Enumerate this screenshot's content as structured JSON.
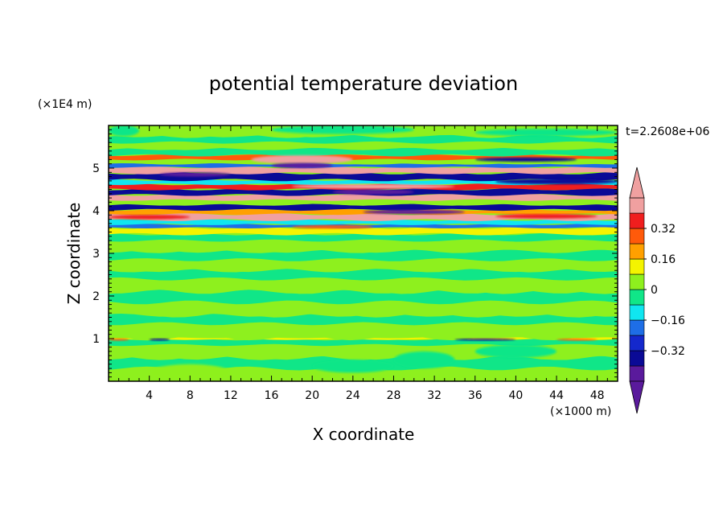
{
  "chart_data": {
    "type": "heatmap",
    "title": "potential temperature deviation",
    "xlabel": "X coordinate",
    "ylabel": "Z coordinate",
    "x_unit": "(×1000 m)",
    "y_unit": "(×1E4 m)",
    "time_label": "t=2.2608e+06",
    "xlim": [
      0,
      50
    ],
    "ylim": [
      0,
      6
    ],
    "x_ticks": [
      4,
      8,
      12,
      16,
      20,
      24,
      28,
      32,
      36,
      40,
      44,
      48
    ],
    "x_tick_labels": [
      "4",
      "8",
      "12",
      "16",
      "20",
      "24",
      "28",
      "32",
      "36",
      "40",
      "44",
      "48"
    ],
    "y_ticks": [
      1,
      2,
      3,
      4,
      5
    ],
    "y_tick_labels": [
      "1",
      "2",
      "3",
      "4",
      "5"
    ],
    "colorbar": {
      "labels": [
        {
          "text": "0.32",
          "value": 0.32
        },
        {
          "text": "0.16",
          "value": 0.16
        },
        {
          "text": "0",
          "value": 0
        },
        {
          "text": "−0.16",
          "value": -0.16
        },
        {
          "text": "−0.32",
          "value": -0.32
        }
      ],
      "levels": [
        {
          "from": -0.48,
          "to": -0.4,
          "color": "#5a1a9c"
        },
        {
          "from": -0.4,
          "to": -0.32,
          "color": "#0a0a96"
        },
        {
          "from": -0.32,
          "to": -0.24,
          "color": "#1428cc"
        },
        {
          "from": -0.24,
          "to": -0.16,
          "color": "#1e6ee6"
        },
        {
          "from": -0.16,
          "to": -0.08,
          "color": "#10e6f0"
        },
        {
          "from": -0.08,
          "to": 0,
          "color": "#10e688"
        },
        {
          "from": 0,
          "to": 0.08,
          "color": "#8ef01e"
        },
        {
          "from": 0.08,
          "to": 0.16,
          "color": "#f4f400"
        },
        {
          "from": 0.16,
          "to": 0.24,
          "color": "#ffa000"
        },
        {
          "from": 0.24,
          "to": 0.32,
          "color": "#ff5a0a"
        },
        {
          "from": 0.32,
          "to": 0.4,
          "color": "#f01e1e"
        },
        {
          "from": 0.4,
          "to": 0.48,
          "color": "#f0a0a0"
        }
      ],
      "extend_low_color": "#5a1a9c",
      "extend_high_color": "#f0a0a0"
    },
    "bands": [
      {
        "z": [
          0.0,
          0.3
        ],
        "v": 0.04
      },
      {
        "z": [
          0.3,
          0.55
        ],
        "v": -0.04
      },
      {
        "z": [
          0.55,
          0.85
        ],
        "v": 0.04
      },
      {
        "z": [
          0.85,
          0.98
        ],
        "v": -0.05
      },
      {
        "z": [
          0.98,
          1.02
        ],
        "v": 0.12
      },
      {
        "z": [
          1.02,
          1.35
        ],
        "v": 0.04
      },
      {
        "z": [
          1.35,
          1.55
        ],
        "v": -0.04
      },
      {
        "z": [
          1.55,
          1.85
        ],
        "v": 0.04
      },
      {
        "z": [
          1.85,
          2.1
        ],
        "v": -0.04
      },
      {
        "z": [
          2.1,
          2.4
        ],
        "v": 0.04
      },
      {
        "z": [
          2.4,
          2.6
        ],
        "v": -0.04
      },
      {
        "z": [
          2.6,
          2.85
        ],
        "v": 0.04
      },
      {
        "z": [
          2.85,
          3.05
        ],
        "v": -0.04
      },
      {
        "z": [
          3.05,
          3.3
        ],
        "v": 0.04
      },
      {
        "z": [
          3.3,
          3.45
        ],
        "v": -0.04
      },
      {
        "z": [
          3.45,
          3.6
        ],
        "v": 0.12
      },
      {
        "z": [
          3.6,
          3.68
        ],
        "v": -0.2
      },
      {
        "z": [
          3.68,
          3.78
        ],
        "v": -0.12
      },
      {
        "z": [
          3.78,
          3.92
        ],
        "v": 0.44
      },
      {
        "z": [
          3.92,
          4.02
        ],
        "v": 0.2
      },
      {
        "z": [
          4.02,
          4.14
        ],
        "v": -0.36
      },
      {
        "z": [
          4.14,
          4.25
        ],
        "v": 0.04
      },
      {
        "z": [
          4.25,
          4.37
        ],
        "v": 0.44
      },
      {
        "z": [
          4.37,
          4.5
        ],
        "v": -0.36
      },
      {
        "z": [
          4.5,
          4.62
        ],
        "v": 0.36
      },
      {
        "z": [
          4.62,
          4.72
        ],
        "v": -0.12
      },
      {
        "z": [
          4.72,
          4.88
        ],
        "v": -0.36
      },
      {
        "z": [
          4.88,
          5.02
        ],
        "v": 0.44
      },
      {
        "z": [
          5.02,
          5.1
        ],
        "v": -0.2
      },
      {
        "z": [
          5.1,
          5.2
        ],
        "v": 0.04
      },
      {
        "z": [
          5.2,
          5.3
        ],
        "v": 0.28
      },
      {
        "z": [
          5.3,
          5.45
        ],
        "v": -0.04
      },
      {
        "z": [
          5.45,
          5.6
        ],
        "v": 0.04
      },
      {
        "z": [
          5.6,
          5.75
        ],
        "v": -0.04
      },
      {
        "z": [
          5.75,
          6.0
        ],
        "v": 0.04
      }
    ],
    "blobs": [
      {
        "x": [
          14,
          24
        ],
        "z": [
          5.1,
          5.3
        ],
        "v": 0.44
      },
      {
        "x": [
          16,
          22
        ],
        "z": [
          5.0,
          5.12
        ],
        "v": -0.44
      },
      {
        "x": [
          5,
          12
        ],
        "z": [
          4.8,
          4.9
        ],
        "v": -0.44
      },
      {
        "x": [
          28,
          38
        ],
        "z": [
          4.9,
          5.0
        ],
        "v": 0.44
      },
      {
        "x": [
          36,
          46
        ],
        "z": [
          5.15,
          5.25
        ],
        "v": -0.36
      },
      {
        "x": [
          18,
          34
        ],
        "z": [
          4.52,
          4.62
        ],
        "v": 0.44
      },
      {
        "x": [
          22,
          30
        ],
        "z": [
          4.38,
          4.5
        ],
        "v": -0.44
      },
      {
        "x": [
          38,
          50
        ],
        "z": [
          4.62,
          4.75
        ],
        "v": -0.36
      },
      {
        "x": [
          25,
          35
        ],
        "z": [
          3.92,
          4.02
        ],
        "v": -0.44
      },
      {
        "x": [
          18,
          26
        ],
        "z": [
          3.58,
          3.66
        ],
        "v": 0.28
      },
      {
        "x": [
          38,
          48
        ],
        "z": [
          3.82,
          3.92
        ],
        "v": 0.36
      },
      {
        "x": [
          0,
          8
        ],
        "z": [
          3.8,
          3.9
        ],
        "v": 0.36
      },
      {
        "x": [
          0,
          3
        ],
        "z": [
          5.75,
          6.0
        ],
        "v": -0.04
      },
      {
        "x": [
          16,
          30
        ],
        "z": [
          5.8,
          6.0
        ],
        "v": -0.04
      },
      {
        "x": [
          36,
          50
        ],
        "z": [
          5.75,
          5.92
        ],
        "v": -0.04
      },
      {
        "x": [
          20,
          28
        ],
        "z": [
          0.2,
          0.5
        ],
        "v": -0.04
      },
      {
        "x": [
          28,
          34
        ],
        "z": [
          0.3,
          0.7
        ],
        "v": -0.04
      },
      {
        "x": [
          36,
          44
        ],
        "z": [
          0.55,
          0.85
        ],
        "v": -0.04
      },
      {
        "x": [
          4,
          12
        ],
        "z": [
          0.0,
          0.4
        ],
        "v": 0.04
      },
      {
        "x": [
          34,
          40
        ],
        "z": [
          0.95,
          1.0
        ],
        "v": -0.36
      },
      {
        "x": [
          4,
          6
        ],
        "z": [
          0.95,
          1.0
        ],
        "v": -0.36
      },
      {
        "x": [
          44,
          48
        ],
        "z": [
          0.95,
          1.0
        ],
        "v": 0.28
      },
      {
        "x": [
          0,
          2
        ],
        "z": [
          0.95,
          1.0
        ],
        "v": 0.28
      }
    ]
  }
}
